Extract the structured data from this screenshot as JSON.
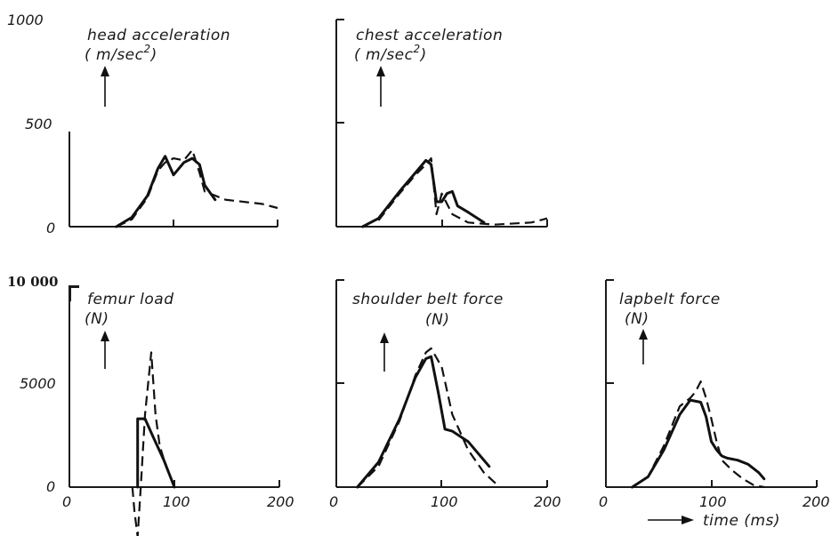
{
  "chart_data": [
    {
      "type": "line",
      "title": "head acceleration",
      "unit": "( m/sec",
      "unit_sup": "2",
      "unit_close": ")",
      "ylim": [
        0,
        1000
      ],
      "xlim": [
        0,
        200
      ],
      "y_ticks": [
        "0",
        "500",
        "1000"
      ],
      "series": [
        {
          "style": "solid",
          "x": [
            45,
            60,
            75,
            85,
            92,
            100,
            110,
            118,
            125,
            130,
            140
          ],
          "y": [
            0,
            45,
            150,
            280,
            340,
            250,
            310,
            330,
            300,
            200,
            130
          ]
        },
        {
          "style": "dashed",
          "x": [
            45,
            60,
            75,
            85,
            92,
            100,
            110,
            118,
            125,
            130,
            150,
            185,
            200
          ],
          "y": [
            0,
            35,
            140,
            270,
            310,
            330,
            320,
            370,
            260,
            170,
            130,
            110,
            90
          ]
        }
      ]
    },
    {
      "type": "line",
      "title": "chest acceleration",
      "unit": "( m/sec",
      "unit_sup": "2",
      "unit_close": ")",
      "ylim": [
        0,
        1000
      ],
      "xlim": [
        0,
        200
      ],
      "series": [
        {
          "style": "solid",
          "x": [
            25,
            40,
            60,
            75,
            85,
            90,
            95,
            100,
            105,
            110,
            115,
            125,
            140
          ],
          "y": [
            0,
            40,
            170,
            260,
            320,
            300,
            120,
            120,
            160,
            170,
            100,
            70,
            20
          ]
        },
        {
          "style": "dashed",
          "x": [
            40,
            60,
            75,
            85,
            90,
            95,
            100,
            110,
            125,
            150,
            185,
            200
          ],
          "y": [
            30,
            160,
            250,
            300,
            330,
            60,
            160,
            60,
            20,
            10,
            20,
            40
          ]
        }
      ]
    },
    {
      "type": "line",
      "title": "femur load",
      "unit": "(N)",
      "ylim": [
        0,
        10000
      ],
      "xlim": [
        0,
        200
      ],
      "y_ticks": [
        "0",
        "5000",
        "10 000"
      ],
      "x_ticks": [
        "0",
        "100",
        "200"
      ],
      "series": [
        {
          "style": "solid",
          "x": [
            65,
            65,
            72,
            80,
            90,
            100
          ],
          "y": [
            0,
            3300,
            3300,
            2400,
            1300,
            0
          ]
        },
        {
          "style": "dashed",
          "x": [
            60,
            62,
            65,
            68,
            72,
            78,
            82,
            86,
            92,
            100
          ],
          "y": [
            0,
            -1200,
            -2400,
            0,
            3500,
            6500,
            3500,
            2000,
            1000,
            0
          ]
        }
      ]
    },
    {
      "type": "line",
      "title": "shoulder belt force",
      "unit": "(N)",
      "ylim": [
        0,
        10000
      ],
      "xlim": [
        0,
        200
      ],
      "x_ticks": [
        "0",
        "100",
        "200"
      ],
      "series": [
        {
          "style": "solid",
          "x": [
            20,
            40,
            60,
            75,
            85,
            90,
            97,
            103,
            110,
            125,
            145
          ],
          "y": [
            0,
            1200,
            3300,
            5300,
            6200,
            6300,
            4500,
            2800,
            2700,
            2200,
            1000
          ]
        },
        {
          "style": "dashed",
          "x": [
            20,
            40,
            60,
            75,
            85,
            90,
            100,
            110,
            125,
            140,
            155
          ],
          "y": [
            0,
            1000,
            3200,
            5400,
            6500,
            6700,
            5800,
            3500,
            1800,
            700,
            0
          ]
        }
      ]
    },
    {
      "type": "line",
      "title": "lapbelt force",
      "unit": "(N)",
      "ylim": [
        0,
        10000
      ],
      "xlim": [
        0,
        200
      ],
      "x_ticks": [
        "0",
        "100",
        "200"
      ],
      "series": [
        {
          "style": "solid",
          "x": [
            25,
            40,
            55,
            70,
            80,
            90,
            95,
            100,
            105,
            110,
            115,
            125,
            135,
            145,
            150
          ],
          "y": [
            0,
            500,
            1800,
            3500,
            4200,
            4100,
            3400,
            2200,
            1800,
            1500,
            1400,
            1300,
            1100,
            700,
            400
          ]
        },
        {
          "style": "dashed",
          "x": [
            25,
            40,
            55,
            70,
            80,
            85,
            90,
            95,
            100,
            105,
            110,
            120,
            130,
            140,
            150
          ],
          "y": [
            0,
            500,
            2000,
            3900,
            4300,
            4600,
            5100,
            4300,
            3300,
            2200,
            1300,
            800,
            400,
            100,
            0
          ]
        }
      ]
    }
  ],
  "time_axis_label": "time (ms)"
}
